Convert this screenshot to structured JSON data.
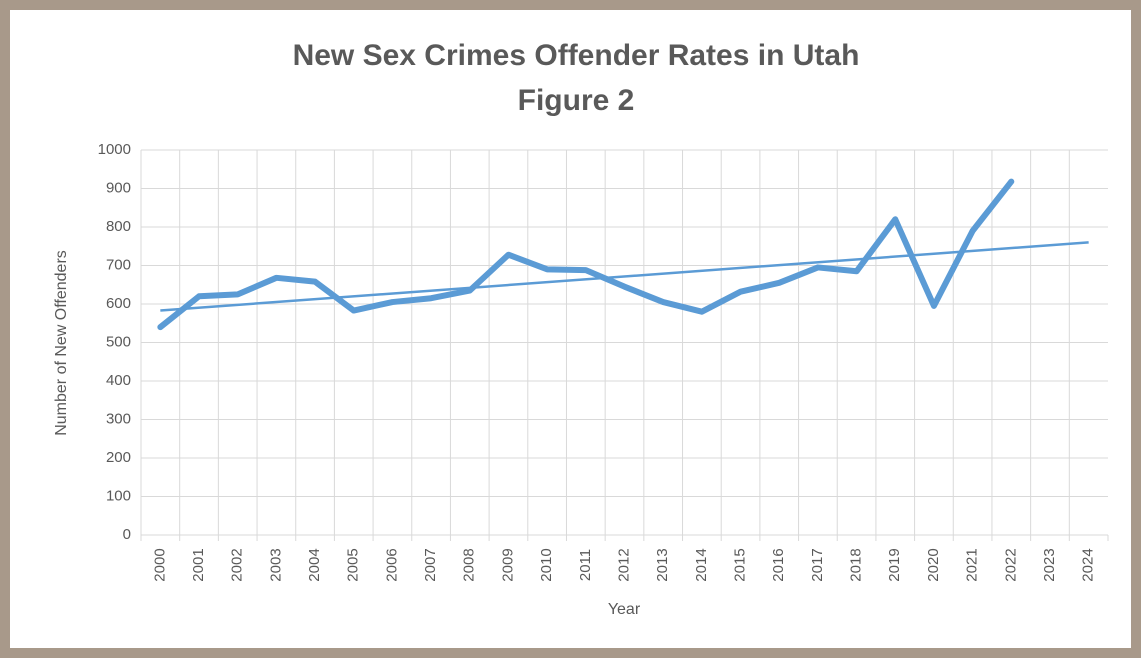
{
  "chart_data": {
    "type": "line",
    "title": "New Sex Crimes Offender Rates in Utah",
    "subtitle": "Figure 2",
    "x_label": "Year",
    "y_label": "Number of New Offenders",
    "categories": [
      "2000",
      "2001",
      "2002",
      "2003",
      "2004",
      "2005",
      "2006",
      "2007",
      "2008",
      "2009",
      "2010",
      "2011",
      "2012",
      "2013",
      "2014",
      "2015",
      "2016",
      "2017",
      "2018",
      "2019",
      "2020",
      "2021",
      "2022",
      "2023",
      "2024"
    ],
    "values": [
      540,
      620,
      625,
      668,
      658,
      583,
      605,
      615,
      635,
      728,
      690,
      688,
      645,
      605,
      580,
      632,
      655,
      695,
      685,
      820,
      595,
      790,
      918,
      null,
      null
    ],
    "color": "#5b9bd5",
    "trendline": {
      "color": "#5b9bd5",
      "values": [
        583,
        760
      ]
    },
    "ylim": [
      0,
      1000
    ],
    "yticks": [
      0,
      100,
      200,
      300,
      400,
      500,
      600,
      700,
      800,
      900,
      1000
    ],
    "grid": true
  }
}
